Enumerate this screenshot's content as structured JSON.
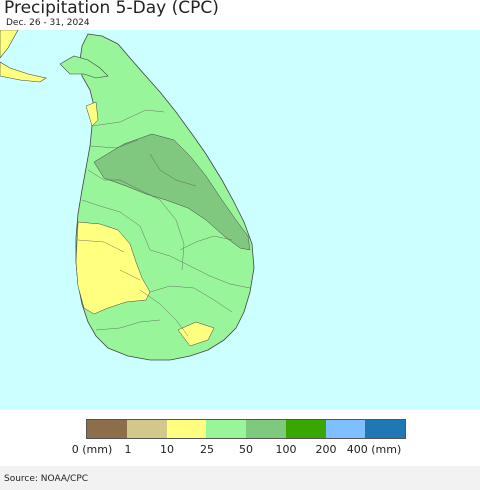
{
  "title": "Precipitation 5-Day (CPC)",
  "subtitle": "Dec. 26 - 31, 2024",
  "map": {
    "region": "Sri Lanka",
    "ocean_color": "#ccffff",
    "land_colors": {
      "25-50": "#99f599",
      "50-100": "#80c880",
      "10-25": "#ffff80"
    }
  },
  "legend": {
    "colors": [
      "#8c6e4b",
      "#d2c88c",
      "#ffff7f",
      "#99f599",
      "#7fc97f",
      "#38a800",
      "#7fbfff",
      "#1f78b4"
    ],
    "labels": [
      "0 (mm)",
      "1",
      "10",
      "25",
      "50",
      "100",
      "200",
      "400 (mm)"
    ]
  },
  "source": "Source: NOAA/CPC"
}
